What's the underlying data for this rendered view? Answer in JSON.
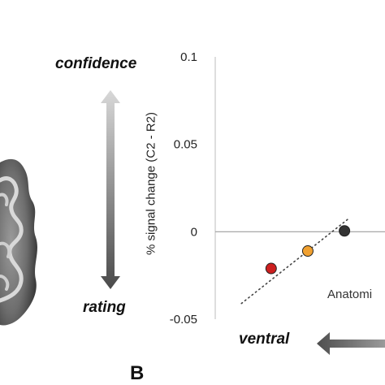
{
  "panel_letter": "B",
  "scale_labels": {
    "top": "confidence",
    "bottom": "rating"
  },
  "axis_bottom_label": "ventral",
  "annotation": "Anatomi",
  "chart_data": {
    "type": "scatter",
    "title": "",
    "xlabel": "",
    "ylabel": "% signal change (C2 - R2)",
    "ylim": [
      -0.05,
      0.1
    ],
    "yticks": [
      0.1,
      0.05,
      0,
      -0.05
    ],
    "ytick_labels": [
      "0.1",
      "0.05",
      "0",
      "-0.05"
    ],
    "xlim": [
      0,
      10
    ],
    "reference_line_y": 0,
    "points": [
      {
        "x": 3.2,
        "y": -0.021,
        "color": "#cc1f1f"
      },
      {
        "x": 5.3,
        "y": -0.011,
        "color": "#f0a030"
      },
      {
        "x": 7.4,
        "y": 0.0005,
        "color": "#333333"
      }
    ],
    "trend_line": {
      "x": [
        1.5,
        7.7
      ],
      "y": [
        -0.041,
        0.008
      ],
      "style": "dotted"
    }
  }
}
